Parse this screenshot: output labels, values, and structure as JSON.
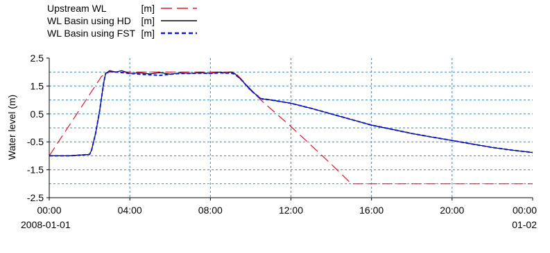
{
  "chart_data": {
    "type": "line",
    "title": "",
    "ylabel": "Water level (m)",
    "xlabel": "",
    "x_unit": "hours since 2008-01-01 00:00",
    "xlim": [
      0,
      24
    ],
    "ylim": [
      -2.5,
      2.5
    ],
    "grid": true,
    "legend_position": "top-left",
    "x_ticks": [
      {
        "x": 0,
        "label": "00:00",
        "sublabel": "2008-01-01"
      },
      {
        "x": 4,
        "label": "04:00"
      },
      {
        "x": 8,
        "label": "08:00"
      },
      {
        "x": 12,
        "label": "12:00"
      },
      {
        "x": 16,
        "label": "16:00"
      },
      {
        "x": 20,
        "label": "20:00"
      },
      {
        "x": 24,
        "label": "00:00",
        "sublabel": "01-02"
      }
    ],
    "y_ticks": [
      {
        "y": 2.5,
        "label": "2.5"
      },
      {
        "y": 1.5,
        "label": "1.5"
      },
      {
        "y": 0.5,
        "label": "0.5"
      },
      {
        "y": -0.5,
        "label": "-0.5"
      },
      {
        "y": -1.5,
        "label": "-1.5"
      },
      {
        "y": -2.5,
        "label": "-2.5"
      }
    ],
    "series": [
      {
        "name": "Upstream WL",
        "unit": "[m]",
        "color": "#e8141e",
        "style": "long-dash",
        "x": [
          0,
          2.6,
          3.0,
          4.0,
          6.0,
          8.0,
          9.2,
          10.5,
          12.0,
          14.0,
          15.0,
          16.0,
          18.0,
          20.0,
          22.0,
          24.0
        ],
        "y": [
          -1.0,
          1.85,
          2.0,
          2.0,
          2.0,
          2.0,
          2.0,
          1.0,
          0.05,
          -1.3,
          -2.0,
          -2.0,
          -2.0,
          -2.0,
          -2.0,
          -2.0
        ]
      },
      {
        "name": "WL Basin using HD",
        "unit": "[m]",
        "color": "#000000",
        "style": "solid",
        "x": [
          0,
          1.0,
          2.0,
          2.1,
          2.3,
          2.5,
          2.7,
          2.8,
          3.0,
          3.3,
          3.6,
          4.0,
          4.5,
          5.0,
          5.5,
          6.0,
          6.5,
          7.0,
          7.5,
          8.0,
          8.5,
          8.8,
          9.0,
          9.2,
          9.5,
          10.0,
          10.5,
          11.0,
          12.0,
          13.0,
          14.0,
          15.0,
          16.0,
          17.0,
          18.0,
          19.0,
          20.0,
          21.0,
          22.0,
          23.0,
          24.0
        ],
        "y": [
          -1.0,
          -1.0,
          -0.95,
          -0.8,
          -0.2,
          0.6,
          1.6,
          1.95,
          2.05,
          2.0,
          2.05,
          1.95,
          1.97,
          1.93,
          1.98,
          1.92,
          1.97,
          1.95,
          1.98,
          1.95,
          2.0,
          1.96,
          2.0,
          1.95,
          1.75,
          1.35,
          1.05,
          1.0,
          0.88,
          0.7,
          0.5,
          0.3,
          0.1,
          -0.05,
          -0.2,
          -0.33,
          -0.45,
          -0.58,
          -0.7,
          -0.8,
          -0.88
        ]
      },
      {
        "name": "WL Basin using FST",
        "unit": "[m]",
        "color": "#0a14f0",
        "style": "short-dash",
        "x": [
          0,
          1.0,
          2.0,
          2.1,
          2.3,
          2.5,
          2.7,
          2.8,
          3.0,
          3.3,
          3.6,
          4.0,
          4.5,
          5.0,
          5.5,
          6.0,
          6.5,
          7.0,
          7.5,
          8.0,
          8.5,
          8.8,
          9.0,
          9.2,
          9.5,
          10.0,
          10.5,
          11.0,
          12.0,
          13.0,
          14.0,
          15.0,
          16.0,
          17.0,
          18.0,
          19.0,
          20.0,
          21.0,
          22.0,
          23.0,
          24.0
        ],
        "y": [
          -1.0,
          -1.0,
          -0.95,
          -0.8,
          -0.2,
          0.6,
          1.6,
          1.95,
          2.02,
          2.0,
          1.98,
          1.95,
          1.92,
          1.9,
          1.88,
          1.92,
          1.95,
          1.95,
          1.96,
          1.95,
          1.97,
          1.96,
          1.96,
          1.93,
          1.75,
          1.35,
          1.05,
          1.0,
          0.88,
          0.7,
          0.5,
          0.3,
          0.1,
          -0.05,
          -0.2,
          -0.33,
          -0.45,
          -0.58,
          -0.7,
          -0.8,
          -0.88
        ]
      }
    ]
  }
}
